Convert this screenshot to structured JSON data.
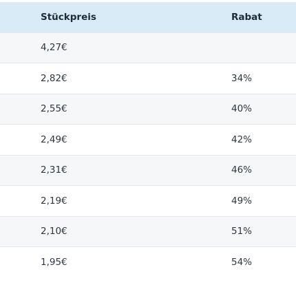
{
  "table": {
    "headers": {
      "price": "Stückpreis",
      "discount": "Rabat"
    },
    "rows": [
      {
        "price": "4,27€",
        "discount": ""
      },
      {
        "price": "2,82€",
        "discount": "34%"
      },
      {
        "price": "2,55€",
        "discount": "40%"
      },
      {
        "price": "2,49€",
        "discount": "42%"
      },
      {
        "price": "2,31€",
        "discount": "46%"
      },
      {
        "price": "2,19€",
        "discount": "49%"
      },
      {
        "price": "2,10€",
        "discount": "51%"
      },
      {
        "price": "1,95€",
        "discount": "54%"
      }
    ]
  },
  "colors": {
    "header_background": "#d9ebf7",
    "row_stripe": "#f6f7f8",
    "row_divider": "#e3e6ea"
  }
}
